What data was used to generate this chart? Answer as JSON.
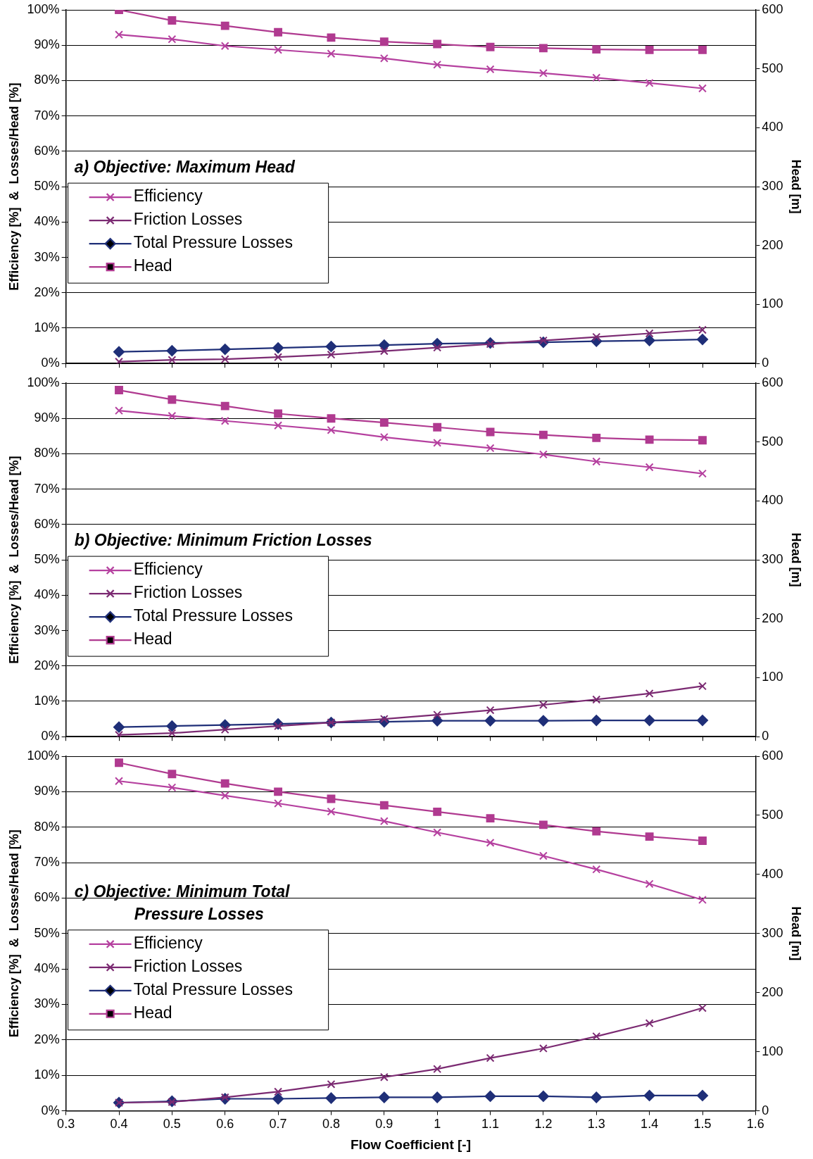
{
  "chart_data": [
    {
      "type": "line",
      "title": "a) Objective: Maximum Head",
      "ylabel": "Efficiency [%]  &  Losses/Head [%]",
      "y2label": "Head [m]",
      "x": [
        0.4,
        0.5,
        0.6,
        0.7,
        0.8,
        0.9,
        1.0,
        1.1,
        1.2,
        1.3,
        1.4,
        1.5
      ],
      "xlim": [
        0.3,
        1.6
      ],
      "xticks": [
        0.3,
        0.4,
        0.5,
        0.6,
        0.7,
        0.8,
        0.9,
        1,
        1.1,
        1.2,
        1.3,
        1.4,
        1.5,
        1.6
      ],
      "ylim": [
        0,
        100
      ],
      "yticks": [
        {
          "value": 0,
          "label": "0%"
        },
        {
          "value": 10,
          "label": "10%"
        },
        {
          "value": 20,
          "label": "20%"
        },
        {
          "value": 30,
          "label": "30%"
        },
        {
          "value": 40,
          "label": "40%"
        },
        {
          "value": 50,
          "label": "50%"
        },
        {
          "value": 60,
          "label": "60%"
        },
        {
          "value": 70,
          "label": "70%"
        },
        {
          "value": 80,
          "label": "80%"
        },
        {
          "value": 90,
          "label": "90%"
        },
        {
          "value": 100,
          "label": "100%"
        }
      ],
      "y2lim": [
        0,
        600
      ],
      "y2ticks": [
        0,
        100,
        200,
        300,
        400,
        500,
        600
      ],
      "grid": "y",
      "legend": "center left",
      "tick_labels": "y",
      "series": [
        {
          "name": "Efficiency",
          "color": "#b5409f",
          "marker": "cross",
          "values": [
            93.0,
            91.7,
            89.8,
            88.7,
            87.6,
            86.3,
            84.5,
            83.2,
            82.1,
            80.8,
            79.3,
            77.8
          ]
        },
        {
          "name": "Friction Losses",
          "color": "#7b2a72",
          "marker": "cross",
          "values": [
            0.5,
            1,
            1.2,
            1.8,
            2.5,
            3.5,
            4.5,
            5.5,
            6.5,
            7.5,
            8.5,
            9.5
          ]
        },
        {
          "name": "Total Pressure Losses",
          "color": "#1f2f78",
          "marker": "diamond",
          "values": [
            3.3,
            3.6,
            4,
            4.4,
            4.8,
            5.2,
            5.6,
            5.8,
            6.0,
            6.3,
            6.5,
            6.8
          ]
        },
        {
          "name": "Head",
          "color": "#b03a90",
          "marker": "square",
          "axis": "y2",
          "values": [
            600,
            582,
            573,
            562,
            553,
            546,
            542,
            537,
            535,
            533,
            532,
            532
          ]
        }
      ]
    },
    {
      "type": "line",
      "title": "b) Objective: Minimum Friction Losses",
      "ylabel": "Efficiency [%]  &  Losses/Head [%]",
      "y2label": "Head [m]",
      "x": [
        0.4,
        0.5,
        0.6,
        0.7,
        0.8,
        0.9,
        1.0,
        1.1,
        1.2,
        1.3,
        1.4,
        1.5
      ],
      "xlim": [
        0.3,
        1.6
      ],
      "xticks": [
        0.3,
        0.4,
        0.5,
        0.6,
        0.7,
        0.8,
        0.9,
        1,
        1.1,
        1.2,
        1.3,
        1.4,
        1.5,
        1.6
      ],
      "ylim": [
        0,
        100
      ],
      "yticks": [
        {
          "value": 0,
          "label": "0%"
        },
        {
          "value": 10,
          "label": "10%"
        },
        {
          "value": 20,
          "label": "20%"
        },
        {
          "value": 30,
          "label": "30%"
        },
        {
          "value": 40,
          "label": "40%"
        },
        {
          "value": 50,
          "label": "50%"
        },
        {
          "value": 60,
          "label": "60%"
        },
        {
          "value": 70,
          "label": "70%"
        },
        {
          "value": 80,
          "label": "80%"
        },
        {
          "value": 90,
          "label": "90%"
        },
        {
          "value": 100,
          "label": "100%"
        }
      ],
      "y2lim": [
        0,
        600
      ],
      "y2ticks": [
        0,
        100,
        200,
        300,
        400,
        500,
        600
      ],
      "grid": "y",
      "legend": "center left",
      "tick_labels": "y",
      "series": [
        {
          "name": "Efficiency",
          "color": "#b5409f",
          "marker": "cross",
          "values": [
            92.2,
            90.7,
            89.3,
            88,
            86.7,
            84.7,
            83.1,
            81.6,
            79.8,
            77.8,
            76.2,
            74.4
          ]
        },
        {
          "name": "Friction Losses",
          "color": "#7b2a72",
          "marker": "cross",
          "values": [
            0.5,
            1,
            2,
            3,
            4,
            5,
            6.2,
            7.5,
            9,
            10.5,
            12.2,
            14.3
          ]
        },
        {
          "name": "Total Pressure Losses",
          "color": "#1f2f78",
          "marker": "diamond",
          "values": [
            2.7,
            3.0,
            3.3,
            3.6,
            4,
            4.2,
            4.5,
            4.5,
            4.5,
            4.6,
            4.6,
            4.6
          ]
        },
        {
          "name": "Head",
          "color": "#b03a90",
          "marker": "square",
          "axis": "y2",
          "values": [
            588,
            572,
            561,
            548,
            540,
            533,
            525,
            517,
            512,
            507,
            504,
            503
          ]
        }
      ]
    },
    {
      "type": "line",
      "title": "c) Objective: Minimum Total\nPressure Losses",
      "ylabel": "Efficiency [%]  &  Losses/Head [%]",
      "y2label": "Head [m]",
      "xlabel": "Flow Coefficient [-]",
      "x": [
        0.4,
        0.5,
        0.6,
        0.7,
        0.8,
        0.9,
        1.0,
        1.1,
        1.2,
        1.3,
        1.4,
        1.5
      ],
      "xlim": [
        0.3,
        1.6
      ],
      "xticks": [
        0.3,
        0.4,
        0.5,
        0.6,
        0.7,
        0.8,
        0.9,
        1,
        1.1,
        1.2,
        1.3,
        1.4,
        1.5,
        1.6
      ],
      "ylim": [
        0,
        100
      ],
      "yticks": [
        {
          "value": 0,
          "label": "0%"
        },
        {
          "value": 10,
          "label": "10%"
        },
        {
          "value": 20,
          "label": "20%"
        },
        {
          "value": 30,
          "label": "30%"
        },
        {
          "value": 40,
          "label": "40%"
        },
        {
          "value": 50,
          "label": "50%"
        },
        {
          "value": 60,
          "label": "60%"
        },
        {
          "value": 70,
          "label": "70%"
        },
        {
          "value": 80,
          "label": "80%"
        },
        {
          "value": 90,
          "label": "90%"
        },
        {
          "value": 100,
          "label": "100%"
        }
      ],
      "y2lim": [
        0,
        600
      ],
      "y2ticks": [
        0,
        100,
        200,
        300,
        400,
        500,
        600
      ],
      "grid": "y",
      "legend": "center left",
      "series": [
        {
          "name": "Efficiency",
          "color": "#b5409f",
          "marker": "cross",
          "values": [
            93,
            91.2,
            88.9,
            86.7,
            84.4,
            81.7,
            78.5,
            75.6,
            71.9,
            68.1,
            64,
            59.5
          ]
        },
        {
          "name": "Friction Losses",
          "color": "#7b2a72",
          "marker": "cross",
          "values": [
            2.3,
            2.5,
            3.8,
            5.4,
            7.5,
            9.5,
            11.8,
            14.9,
            17.6,
            21,
            24.7,
            29
          ]
        },
        {
          "name": "Total Pressure Losses",
          "color": "#1f2f78",
          "marker": "diamond",
          "values": [
            2.3,
            2.7,
            3.4,
            3.4,
            3.6,
            3.8,
            3.8,
            4.1,
            4.1,
            3.8,
            4.3,
            4.3
          ]
        },
        {
          "name": "Head",
          "color": "#b03a90",
          "marker": "square",
          "axis": "y2",
          "values": [
            589,
            570,
            554,
            540,
            528,
            517,
            506,
            495,
            484,
            473,
            464,
            457
          ]
        }
      ]
    }
  ]
}
